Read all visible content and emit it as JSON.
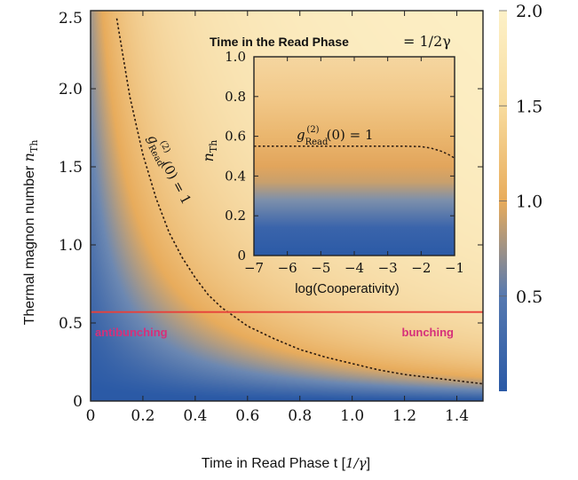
{
  "chart_data": [
    {
      "type": "heatmap",
      "xlabel": "Time in Read Phase t [1/γ]",
      "ylabel": "Thermal magnon number n_Th",
      "xlim": [
        0,
        1.5
      ],
      "ylim": [
        0,
        2.5
      ],
      "xticks": [
        "0",
        "0.2",
        "0.4",
        "0.6",
        "0.8",
        "1.0",
        "1.2",
        "1.4"
      ],
      "yticks": [
        "0",
        "0.5",
        "1.0",
        "1.5",
        "2.0",
        "2.5"
      ],
      "xtick_values": [
        0,
        0.2,
        0.4,
        0.6,
        0.8,
        1.0,
        1.2,
        1.4
      ],
      "ytick_values": [
        0,
        0.5,
        1.0,
        1.5,
        2.0,
        2.5
      ],
      "colorbar": {
        "range": [
          0,
          2.0
        ],
        "ticks": [
          "0.5",
          "1.0",
          "1.5",
          "2.0"
        ],
        "tick_values": [
          0.5,
          1.0,
          1.5,
          2.0
        ],
        "colors": [
          "#2b5aa6",
          "#6c88b2",
          "#e8ac5c",
          "#fdf1c8"
        ]
      },
      "contour": {
        "label": "g_Read^(2)(0) = 1",
        "x": [
          0.1,
          0.15,
          0.2,
          0.25,
          0.3,
          0.35,
          0.4,
          0.45,
          0.5,
          0.6,
          0.7,
          0.8,
          0.9,
          1.0,
          1.1,
          1.2,
          1.3,
          1.4,
          1.5
        ],
        "y": [
          2.45,
          1.95,
          1.58,
          1.3,
          1.08,
          0.92,
          0.79,
          0.68,
          0.6,
          0.48,
          0.4,
          0.33,
          0.28,
          0.24,
          0.2,
          0.17,
          0.15,
          0.13,
          0.11
        ]
      },
      "threshold_line": {
        "y": 0.57,
        "color": "#e8403a"
      },
      "annotations": [
        {
          "text": "antibunching",
          "color": "#d6307a"
        },
        {
          "text": "bunching",
          "color": "#d6307a"
        }
      ]
    },
    {
      "type": "heatmap",
      "title": "Time in the Read Phase",
      "title_suffix": "= 1/2γ",
      "xlabel": "log(Cooperativity)",
      "ylabel": "n_Th",
      "xlim": [
        -7,
        -1
      ],
      "ylim": [
        0,
        1.0
      ],
      "xticks": [
        "−7",
        "−6",
        "−5",
        "−4",
        "−3",
        "−2",
        "−1"
      ],
      "yticks": [
        "0",
        "0.2",
        "0.4",
        "0.6",
        "0.8",
        "1.0"
      ],
      "xtick_values": [
        -7,
        -6,
        -5,
        -4,
        -3,
        -2,
        -1
      ],
      "ytick_values": [
        0,
        0.2,
        0.4,
        0.6,
        0.8,
        1.0
      ],
      "contour": {
        "label": "g_Read^(2)(0) = 1",
        "x": [
          -7,
          -6,
          -5,
          -4,
          -3,
          -2.5,
          -2,
          -1.7,
          -1.4,
          -1.2,
          -1
        ],
        "y": [
          0.55,
          0.55,
          0.55,
          0.55,
          0.55,
          0.55,
          0.548,
          0.54,
          0.525,
          0.51,
          0.49
        ]
      }
    }
  ]
}
